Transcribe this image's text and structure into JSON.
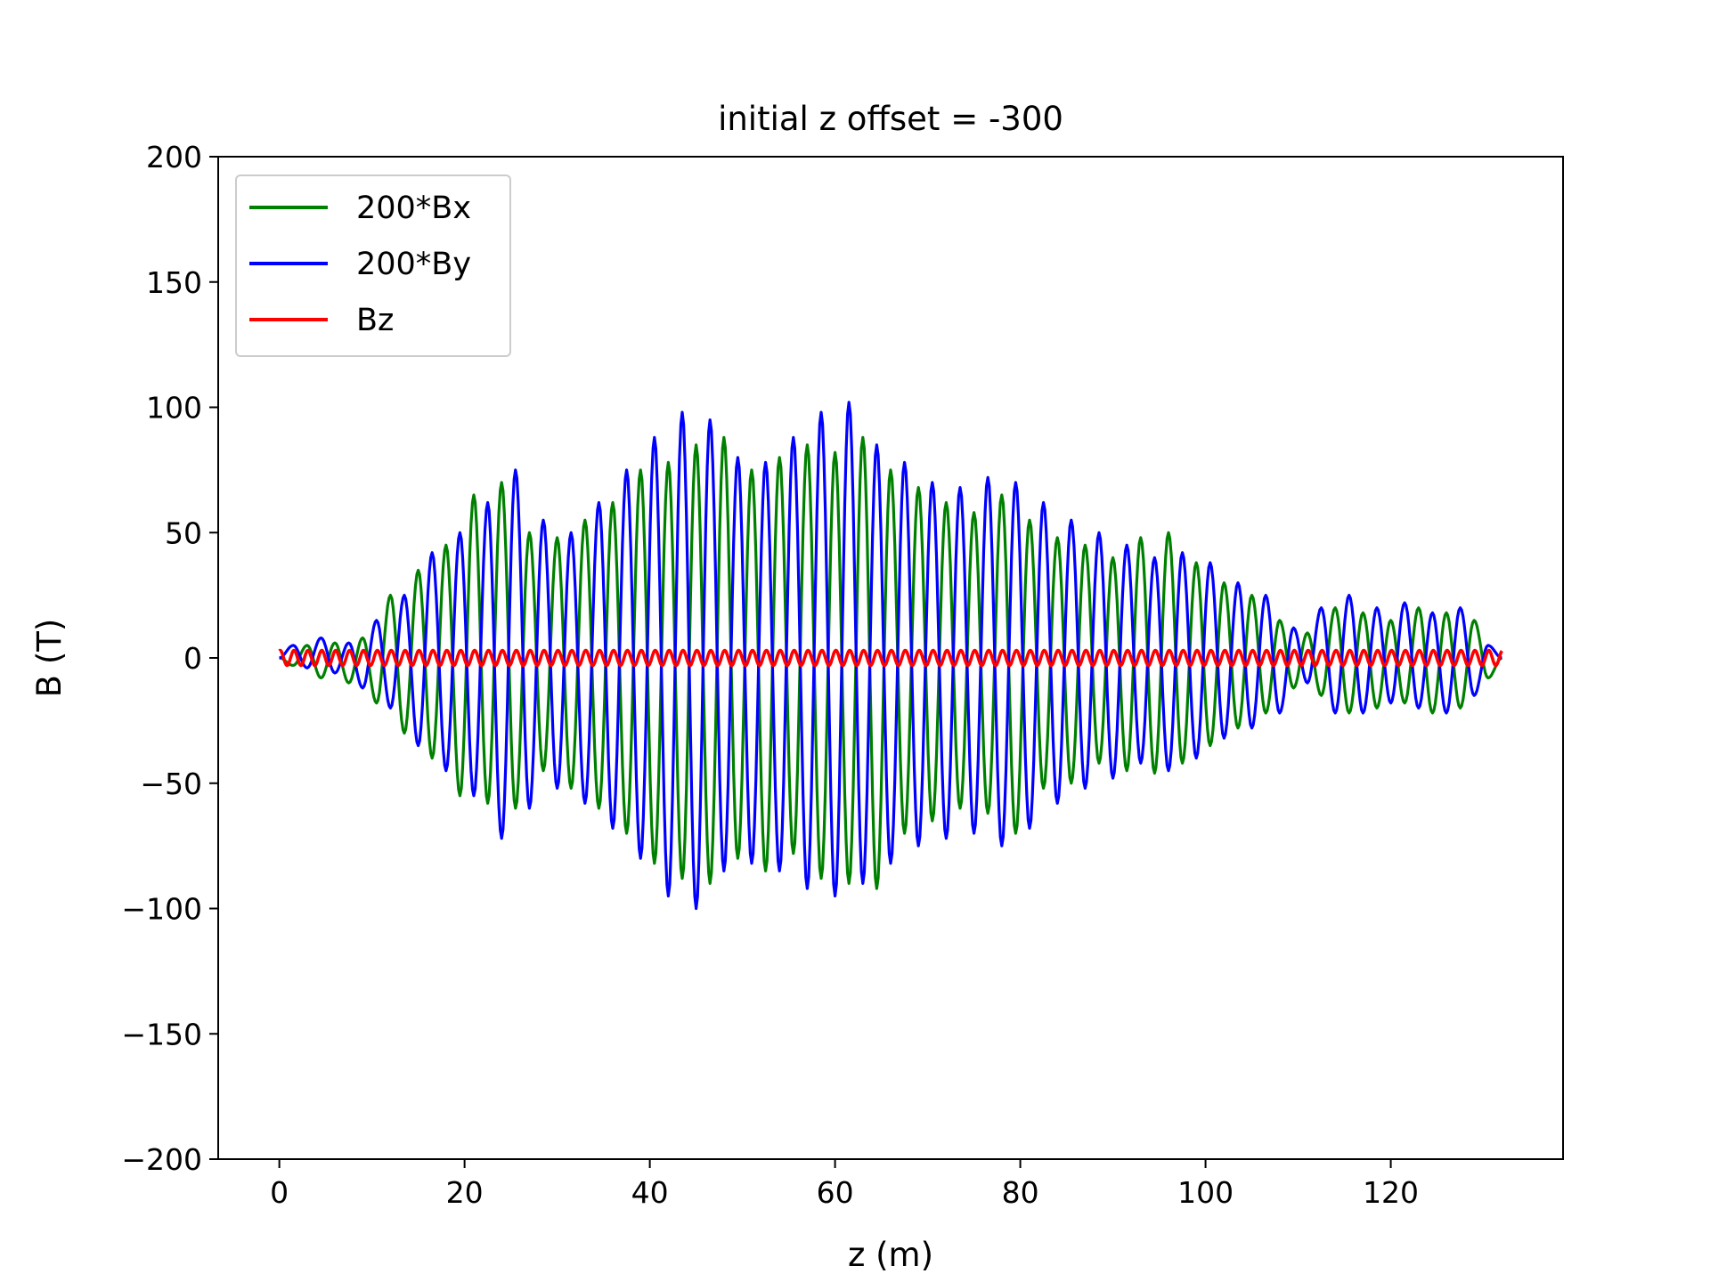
{
  "chart_data": {
    "type": "line",
    "title": "initial z offset = -300",
    "xlabel": "z (m)",
    "ylabel": "B (T)",
    "xlim": [
      -6.6,
      138.6
    ],
    "ylim": [
      -200,
      200
    ],
    "xticks": [
      0,
      20,
      40,
      60,
      80,
      100,
      120
    ],
    "xtick_labels": [
      "0",
      "20",
      "40",
      "60",
      "80",
      "100",
      "120"
    ],
    "yticks": [
      -200,
      -150,
      -100,
      -50,
      0,
      50,
      100,
      150,
      200
    ],
    "ytick_labels": [
      "−200",
      "−150",
      "−100",
      "−50",
      "0",
      "50",
      "100",
      "150",
      "200"
    ],
    "grid": false,
    "legend_position": "upper-left",
    "x": [
      0,
      1.5,
      3,
      4.5,
      6,
      7.5,
      9,
      10.5,
      12,
      13.5,
      15,
      16.5,
      18,
      19.5,
      21,
      22.5,
      24,
      25.5,
      27,
      28.5,
      30,
      31.5,
      33,
      34.5,
      36,
      37.5,
      39,
      40.5,
      42,
      43.5,
      45,
      46.5,
      48,
      49.5,
      51,
      52.5,
      54,
      55.5,
      57,
      58.5,
      60,
      61.5,
      63,
      64.5,
      66,
      67.5,
      69,
      70.5,
      72,
      73.5,
      75,
      76.5,
      78,
      79.5,
      81,
      82.5,
      84,
      85.5,
      87,
      88.5,
      90,
      91.5,
      93,
      94.5,
      96,
      97.5,
      99,
      100.5,
      102,
      103.5,
      105,
      106.5,
      108,
      109.5,
      111,
      112.5,
      114,
      115.5,
      117,
      118.5,
      120,
      121.5,
      123,
      124.5,
      126,
      127.5,
      129,
      130.5,
      132
    ],
    "series": [
      {
        "name": "200*Bx",
        "color": "#008000",
        "values": [
          0,
          -3,
          5,
          -8,
          6,
          -10,
          8,
          -18,
          25,
          -30,
          35,
          -40,
          45,
          -55,
          65,
          -58,
          70,
          -60,
          50,
          -45,
          48,
          -52,
          55,
          -60,
          62,
          -70,
          75,
          -82,
          78,
          -88,
          85,
          -90,
          88,
          -80,
          75,
          -85,
          80,
          -78,
          85,
          -88,
          82,
          -90,
          88,
          -92,
          75,
          -70,
          68,
          -65,
          62,
          -60,
          58,
          -62,
          65,
          -70,
          55,
          -52,
          48,
          -50,
          45,
          -42,
          40,
          -45,
          48,
          -46,
          50,
          -42,
          38,
          -35,
          30,
          -28,
          25,
          -22,
          15,
          -12,
          10,
          -15,
          20,
          -22,
          18,
          -20,
          15,
          -18,
          20,
          -22,
          18,
          -20,
          15,
          -8,
          0
        ]
      },
      {
        "name": "200*By",
        "color": "#0000ff",
        "values": [
          0,
          5,
          -4,
          8,
          -6,
          6,
          -12,
          15,
          -20,
          25,
          -35,
          42,
          -45,
          50,
          -55,
          62,
          -72,
          75,
          -60,
          55,
          -52,
          50,
          -58,
          62,
          -68,
          75,
          -80,
          88,
          -95,
          98,
          -100,
          95,
          -85,
          80,
          -82,
          78,
          -85,
          88,
          -92,
          98,
          -95,
          102,
          -90,
          85,
          -82,
          78,
          -75,
          70,
          -72,
          68,
          -70,
          72,
          -75,
          70,
          -68,
          62,
          -58,
          55,
          -52,
          50,
          -48,
          45,
          -42,
          40,
          -45,
          42,
          -40,
          38,
          -32,
          30,
          -28,
          25,
          -22,
          12,
          -10,
          20,
          -22,
          25,
          -22,
          20,
          -18,
          22,
          -20,
          18,
          -22,
          20,
          -15,
          5,
          0
        ]
      },
      {
        "name": "Bz",
        "color": "#ff0000",
        "amplitude": 3,
        "cycles": 88
      }
    ]
  }
}
